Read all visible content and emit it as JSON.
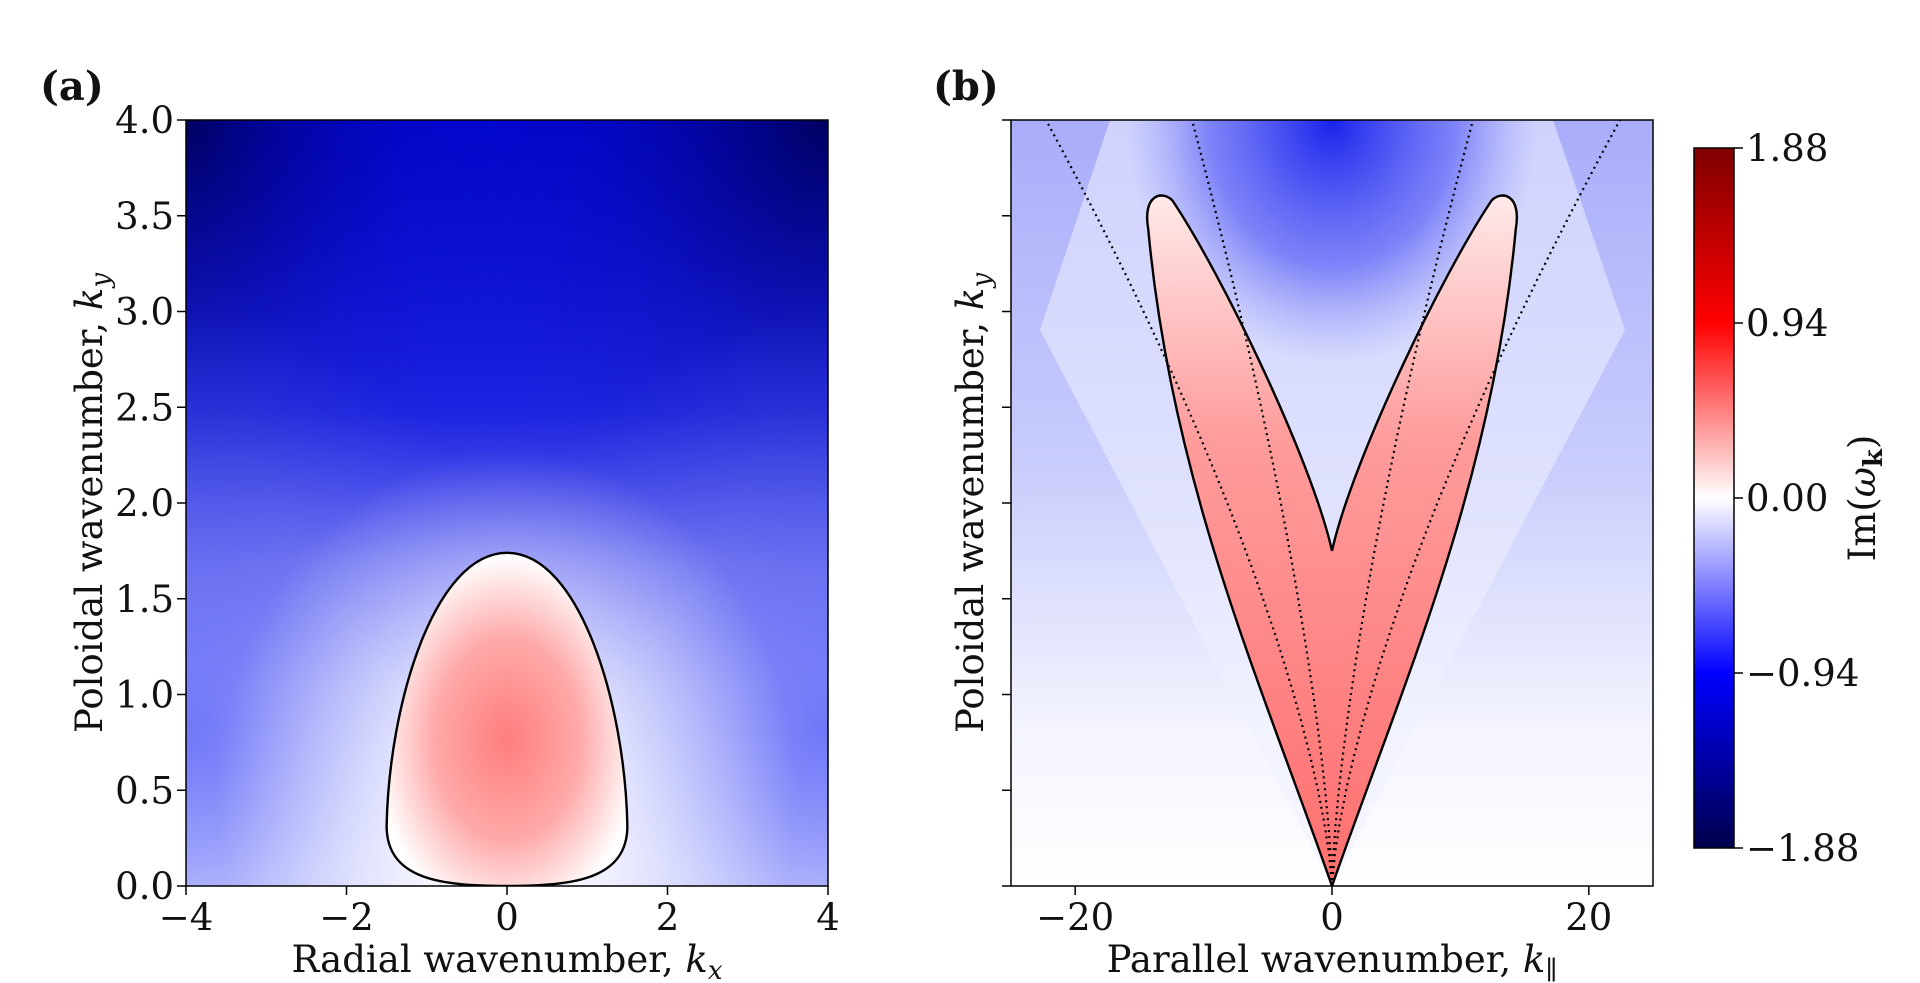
{
  "chart_data": [
    {
      "panel": "(a)",
      "type": "heatmap",
      "xlabel_text": "Radial wavenumber, ",
      "xlabel_sym": "k",
      "xlabel_sub": "x",
      "ylabel_text": "Poloidal wavenumber, ",
      "ylabel_sym": "k",
      "ylabel_sub": "y",
      "xlim": [
        -4,
        4
      ],
      "ylim": [
        0,
        4
      ],
      "xticks": [
        -4,
        -2,
        0,
        2,
        4
      ],
      "xtick_labels": [
        "−4",
        "−2",
        "0",
        "2",
        "4"
      ],
      "yticks": [
        0,
        0.5,
        1,
        1.5,
        2,
        2.5,
        3,
        3.5,
        4
      ],
      "ytick_labels": [
        "0.0",
        "0.5",
        "1.0",
        "1.5",
        "2.0",
        "2.5",
        "3.0",
        "3.5",
        "4.0"
      ],
      "contour_level": 0,
      "contour_max_ky": 1.74,
      "contour_half_width_kx": 1.5,
      "peak_value": 0.55,
      "peak_location": [
        0,
        0.9
      ]
    },
    {
      "panel": "(b)",
      "type": "heatmap",
      "xlabel_text": "Parallel wavenumber, ",
      "xlabel_sym": "k",
      "xlabel_sub": "∥",
      "ylabel_text": "Poloidal wavenumber, ",
      "ylabel_sym": "k",
      "ylabel_sub": "y",
      "xlim": [
        -25,
        25
      ],
      "ylim": [
        0,
        4
      ],
      "xticks": [
        -20,
        0,
        20
      ],
      "xtick_labels": [
        "−20",
        "0",
        "20"
      ],
      "yticks": [
        0,
        0.5,
        1,
        1.5,
        2,
        2.5,
        3,
        3.5,
        4
      ],
      "ytick_labels": [],
      "contour_level": 0,
      "lobe_tip_kpar": 14,
      "lobe_tip_ky": 3.56,
      "inner_cusp_ky": 1.75
    }
  ],
  "colorbar": {
    "label_text": "Im(",
    "label_sym": "ω",
    "label_sub": "k",
    "label_close": ")",
    "range": [
      -1.88,
      1.88
    ],
    "ticks": [
      -1.88,
      -0.94,
      0,
      0.94,
      1.88
    ],
    "tick_labels": [
      "−1.88",
      "−0.94",
      "0.00",
      "0.94",
      "1.88"
    ],
    "colormap": "seismic",
    "colors": [
      "#00004c",
      "#0000ff",
      "#ffffff",
      "#ff0000",
      "#7f0000"
    ]
  }
}
